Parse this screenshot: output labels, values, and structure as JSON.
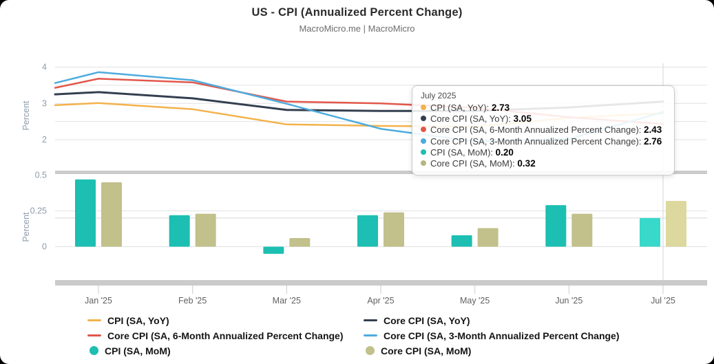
{
  "header": {
    "title": "US - CPI (Annualized Percent Change)",
    "subtitle": "MacroMicro.me | MacroMicro"
  },
  "chart_data": [
    {
      "type": "line",
      "pane": "top",
      "ylabel": "Percent",
      "ylim": [
        1.1,
        4.15
      ],
      "yticks": [
        2,
        3,
        4
      ],
      "gridline_values": [
        2,
        2.5,
        3,
        3.5,
        4
      ],
      "grid": true,
      "x": [
        "Jan '25",
        "Feb '25",
        "Mar '25",
        "Apr '25",
        "May '25",
        "Jun '25",
        "Jul '25"
      ],
      "series": [
        {
          "name": "CPI (SA, YoY)",
          "color": "#f3b24c",
          "left_edge_value": 2.95,
          "values": [
            3.01,
            2.84,
            2.42,
            2.38,
            2.36,
            2.6,
            2.73
          ]
        },
        {
          "name": "Core CPI (SA, YoY)",
          "color": "#333f4f",
          "left_edge_value": 3.25,
          "values": [
            3.31,
            3.14,
            2.82,
            2.79,
            2.79,
            2.89,
            3.05
          ]
        },
        {
          "name": "Core CPI (SA, 6-Month Annualized Percent Change)",
          "color": "#e2574b",
          "left_edge_value": 3.43,
          "values": [
            3.68,
            3.58,
            3.05,
            3.0,
            2.88,
            2.62,
            2.43
          ]
        },
        {
          "name": "Core CPI (SA, 3-Month Annualized Percent Change)",
          "color": "#4dabdd",
          "left_edge_value": 3.56,
          "values": [
            3.86,
            3.64,
            2.99,
            2.3,
            1.95,
            2.02,
            2.76
          ]
        }
      ]
    },
    {
      "type": "bar",
      "pane": "bottom",
      "ylabel": "Percent",
      "ylim": [
        -0.24,
        0.56
      ],
      "yticks": [
        0,
        0.25,
        0.5
      ],
      "ytick_labels": [
        "0",
        "0.25",
        "0.5"
      ],
      "grid": true,
      "categories": [
        "Jan '25",
        "Feb '25",
        "Mar '25",
        "Apr '25",
        "May '25",
        "Jun '25",
        "Jul '25"
      ],
      "series": [
        {
          "name": "CPI (SA, MoM)",
          "color": "#1cbfb2",
          "highlight_color": "#38d8ca",
          "values": [
            0.47,
            0.22,
            -0.05,
            0.22,
            0.08,
            0.29,
            0.2
          ]
        },
        {
          "name": "Core CPI (SA, MoM)",
          "color": "#c2c08b",
          "highlight_color": "#dcd89e",
          "values": [
            0.45,
            0.23,
            0.06,
            0.24,
            0.13,
            0.23,
            0.32
          ]
        }
      ],
      "highlighted_category_index": 6,
      "reference_line_value": 0.2,
      "crosshair_category": "Jul '25"
    }
  ],
  "tooltip": {
    "title": "July 2025",
    "rows": [
      {
        "label": "CPI (SA, YoY)",
        "value": "2.73",
        "color": "#f3b24c"
      },
      {
        "label": "Core CPI (SA, YoY)",
        "value": "3.05",
        "color": "#333f4f"
      },
      {
        "label": "Core CPI (SA, 6-Month Annualized Percent Change)",
        "value": "2.43",
        "color": "#e2574b"
      },
      {
        "label": "Core CPI (SA, 3-Month Annualized Percent Change)",
        "value": "2.76",
        "color": "#4dabdd"
      },
      {
        "label": "CPI (SA, MoM)",
        "value": "0.20",
        "color": "#1cbfb2"
      },
      {
        "label": "Core CPI (SA, MoM)",
        "value": "0.32",
        "color": "#b7b57f"
      }
    ]
  },
  "legend": {
    "items": [
      {
        "label": "CPI (SA, YoY)",
        "marker": "line",
        "color": "#f3b24c"
      },
      {
        "label": "Core CPI (SA, YoY)",
        "marker": "line",
        "color": "#333f4f"
      },
      {
        "label": "Core CPI (SA, 6-Month Annualized Percent Change)",
        "marker": "line",
        "color": "#e2574b"
      },
      {
        "label": "Core CPI (SA, 3-Month Annualized Percent Change)",
        "marker": "line",
        "color": "#4dabdd"
      },
      {
        "label": "CPI (SA, MoM)",
        "marker": "circle",
        "color": "#1cbfb2"
      },
      {
        "label": "Core CPI (SA, MoM)",
        "marker": "circle",
        "color": "#c2c08b"
      }
    ]
  },
  "colors": {
    "grid": "#e2e2e2",
    "axis_band": "#cbcbcb",
    "crosshair": "#d4d4d4",
    "reference_line": "#d8d8d8",
    "ytick_text": "#8e9cab",
    "xtick_text": "#606060"
  }
}
